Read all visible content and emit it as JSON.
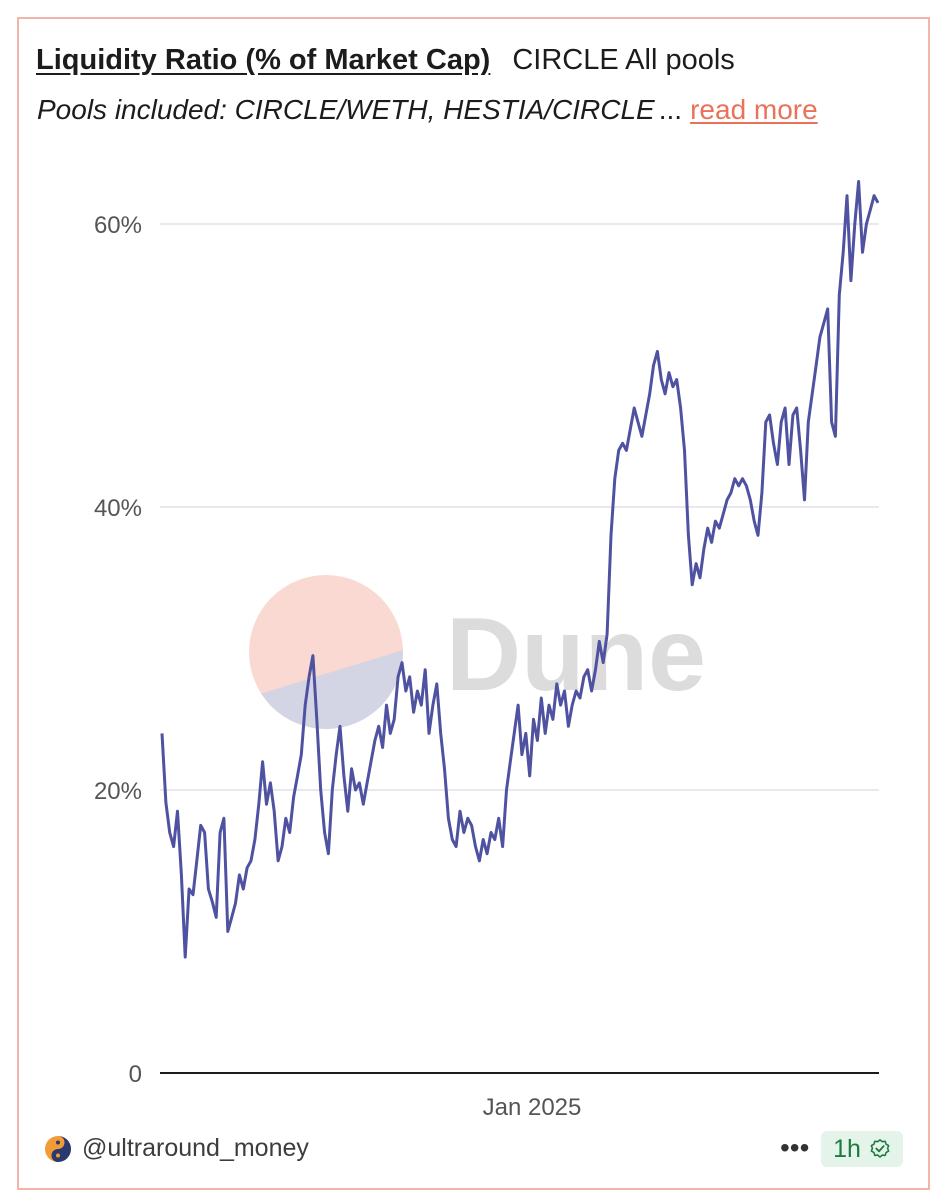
{
  "header": {
    "query_title": "Liquidity Ratio (% of Market Cap)",
    "viz_title": "CIRCLE All pools",
    "pools_text": "Pools included: CIRCLE/WETH, HESTIA/CIRCLE",
    "ellipsis": "...",
    "read_more": "read more"
  },
  "footer": {
    "username": "@ultraround_money",
    "more": "•••",
    "refresh_badge": "1h",
    "refresh_icon": "check-badge-icon"
  },
  "watermark": {
    "text": "Dune"
  },
  "colors": {
    "line": "#4f52a0",
    "accent": "#e8735a",
    "grid": "#e8e8ee",
    "border": "#f2b5a8"
  },
  "chart_data": {
    "type": "line",
    "title": "",
    "xlabel": "",
    "ylabel": "",
    "y_tick_labels": [
      "0",
      "20%",
      "40%",
      "60%"
    ],
    "y_ticks": [
      0,
      20,
      40,
      60
    ],
    "x_tick_labels": [
      "Jan 2025"
    ],
    "ylim": [
      0,
      63
    ],
    "grid": true,
    "series": [
      {
        "values": [
          24.0,
          19.1,
          17.0,
          16.0,
          18.5,
          14.0,
          8.2,
          13.0,
          12.6,
          15.0,
          17.5,
          17.0,
          13.0,
          12.1,
          11.0,
          17.0,
          18.0,
          10.0,
          11.0,
          12.0,
          14.0,
          13.0,
          14.5,
          15.0,
          16.5,
          19.0,
          22.0,
          19.0,
          20.5,
          18.5,
          15.0,
          16.0,
          18.0,
          17.0,
          19.5,
          21.0,
          22.5,
          26.0,
          28.0,
          29.5,
          25.0,
          20.0,
          17.0,
          15.5,
          20.0,
          22.5,
          24.5,
          21.0,
          18.5,
          21.5,
          20.0,
          20.5,
          19.0,
          20.5,
          22.0,
          23.5,
          24.5,
          23.0,
          26.0,
          24.0,
          25.0,
          28.0,
          29.0,
          27.0,
          28.0,
          25.5,
          27.0,
          26.0,
          28.5,
          24.0,
          26.0,
          27.5,
          24.0,
          21.5,
          18.0,
          16.5,
          16.0,
          18.5,
          17.0,
          18.0,
          17.5,
          16.0,
          15.0,
          16.5,
          15.5,
          17.0,
          16.5,
          18.0,
          16.0,
          20.0,
          22.0,
          24.0,
          26.0,
          22.5,
          24.0,
          21.0,
          25.0,
          23.5,
          26.5,
          24.0,
          26.0,
          25.0,
          27.5,
          26.0,
          27.0,
          24.5,
          26.0,
          27.0,
          26.5,
          28.0,
          28.5,
          27.0,
          28.5,
          30.5,
          29.0,
          31.0,
          38.0,
          42.0,
          44.0,
          44.5,
          44.0,
          45.5,
          47.0,
          46.0,
          45.0,
          46.5,
          48.0,
          50.0,
          51.0,
          49.0,
          48.0,
          49.5,
          48.5,
          49.0,
          47.0,
          44.0,
          38.0,
          34.5,
          36.0,
          35.0,
          37.0,
          38.5,
          37.5,
          39.0,
          38.5,
          39.5,
          40.5,
          41.0,
          42.0,
          41.5,
          42.0,
          41.5,
          40.5,
          39.0,
          38.0,
          41.0,
          46.0,
          46.5,
          44.5,
          43.0,
          46.0,
          47.0,
          43.0,
          46.5,
          47.0,
          44.0,
          40.5,
          46.0,
          48.0,
          50.0,
          52.0,
          53.0,
          54.0,
          46.0,
          45.0,
          55.0,
          58.0,
          62.0,
          56.0,
          60.0,
          63.0,
          58.0,
          60.0,
          61.0,
          62.0,
          61.5
        ]
      }
    ]
  }
}
